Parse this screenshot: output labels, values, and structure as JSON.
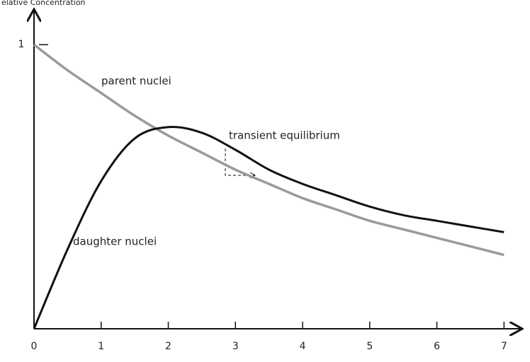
{
  "chart_data": {
    "type": "line",
    "y_label": "elative Concentration",
    "x": [
      0,
      0.5,
      1,
      1.5,
      2,
      2.5,
      3,
      3.5,
      4,
      4.5,
      5,
      5.5,
      6,
      6.5,
      7
    ],
    "series": [
      {
        "name": "parent nuclei",
        "color": "#9a9a9a",
        "values": [
          1,
          0.91,
          0.83,
          0.75,
          0.68,
          0.62,
          0.56,
          0.51,
          0.46,
          0.42,
          0.38,
          0.35,
          0.32,
          0.29,
          0.26
        ]
      },
      {
        "name": "daughter nuclei",
        "color": "#111111",
        "values": [
          0,
          0.28,
          0.52,
          0.67,
          0.71,
          0.69,
          0.63,
          0.56,
          0.51,
          0.47,
          0.43,
          0.4,
          0.38,
          0.36,
          0.34
        ]
      }
    ],
    "annotation": "transient equilibrium",
    "xlim": [
      0,
      7.25
    ],
    "ylim": [
      0,
      1.12
    ],
    "xticks": [
      0,
      1,
      2,
      3,
      4,
      5,
      6,
      7
    ],
    "yticks": [
      1
    ]
  }
}
